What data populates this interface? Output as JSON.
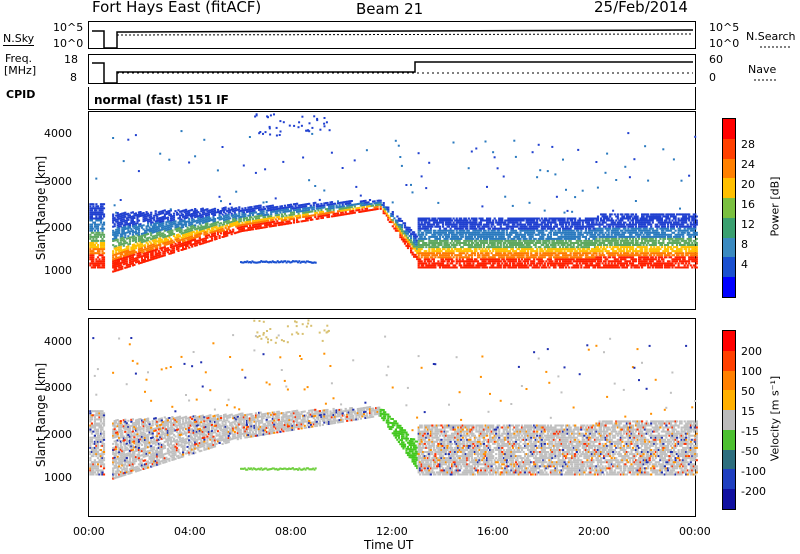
{
  "header": {
    "title": "Fort Hays East (fitACF)",
    "beam": "Beam 21",
    "date": "25/Feb/2014"
  },
  "aux": {
    "nsky_label": "N.Sky",
    "nsky_ticks": [
      "10^5",
      "10^0"
    ],
    "nsearch_label": "N.Search",
    "nsearch_ticks": [
      "10^5",
      "10^0"
    ],
    "freq_label_1": "Freq.",
    "freq_label_2": "[MHz]",
    "freq_ticks": [
      "18",
      "8"
    ],
    "nave_label": "Nave",
    "nave_ticks": [
      "60",
      "0"
    ],
    "cpid_label": "CPID",
    "cpid_text": "normal (fast) 151 IF"
  },
  "chart_data": [
    {
      "type": "heatmap",
      "ylabel": "Slant Range [km]",
      "yticks": [
        "4000",
        "3000",
        "2000",
        "1000"
      ],
      "ylim": [
        200,
        4600
      ],
      "xlim_hours": [
        0,
        24
      ],
      "colorbar": {
        "label": "Power [dB]",
        "ticks": [
          "28",
          "24",
          "20",
          "16",
          "12",
          "8",
          "4"
        ],
        "colors": [
          "#0000ff",
          "#1a50d0",
          "#3a8ac0",
          "#3aa070",
          "#7ac040",
          "#ffc000",
          "#ff8000",
          "#ff4000",
          "#ff0000"
        ]
      }
    },
    {
      "type": "heatmap",
      "ylabel": "Slant Range [km]",
      "yticks": [
        "4000",
        "3000",
        "2000",
        "1000"
      ],
      "ylim": [
        200,
        4600
      ],
      "xlim_hours": [
        0,
        24
      ],
      "xlabel": "Time UT",
      "xticks": [
        "00:00",
        "04:00",
        "08:00",
        "12:00",
        "16:00",
        "20:00",
        "00:00"
      ],
      "colorbar": {
        "label": "Velocity [m s⁻¹]",
        "ticks": [
          "200",
          "100",
          "50",
          "15",
          "-15",
          "-50",
          "-100",
          "-200"
        ],
        "colors": [
          "#1010a0",
          "#1f3fc0",
          "#2d6e7e",
          "#4cc030",
          "#bbbbbb",
          "#ffb000",
          "#ff8000",
          "#ff4000",
          "#ff0000"
        ]
      }
    }
  ]
}
